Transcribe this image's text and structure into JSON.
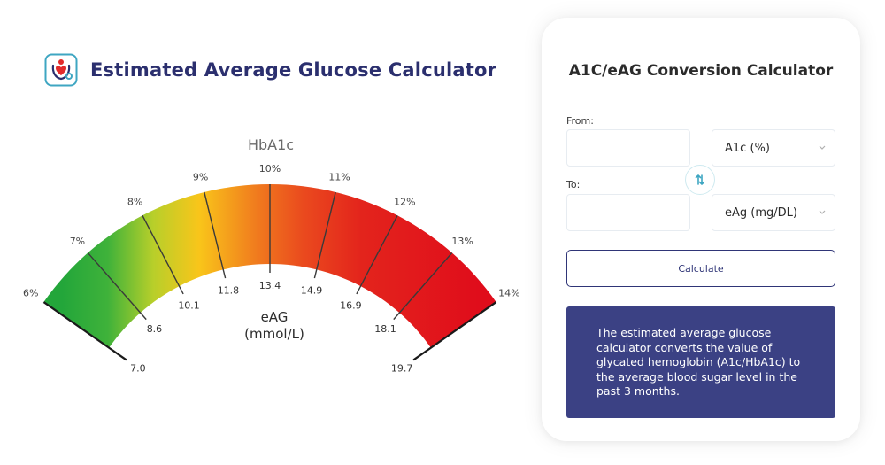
{
  "header": {
    "title": "Estimated Average Glucose Calculator",
    "logo_icon": "heart-stethoscope-logo-icon"
  },
  "gauge": {
    "title": "HbA1c",
    "center_label_line1": "eAG",
    "center_label_line2": "(mmol/L)",
    "outer_ticks": [
      "6%",
      "7%",
      "8%",
      "9%",
      "10%",
      "11%",
      "12%",
      "13%",
      "14%"
    ],
    "inner_ticks": [
      "7.0",
      "8.6",
      "10.1",
      "11.8",
      "13.4",
      "14.9",
      "16.9",
      "18.1",
      "19.7"
    ],
    "colors": {
      "low": "#2eaa3a",
      "mid_low": "#b9cf2a",
      "mid": "#f7c21a",
      "mid_high": "#f06b1e",
      "high": "#e10f1a"
    }
  },
  "calculator": {
    "title": "A1C/eAG Conversion Calculator",
    "from_label": "From:",
    "to_label": "To:",
    "from_value": "",
    "to_value": "",
    "from_unit": "A1c (%)",
    "to_unit": "eAg (mg/DL)",
    "swap_icon": "swap-arrows-icon",
    "button_label": "Calculate",
    "info_text": "The estimated average glucose calculator converts the value of glycated hemoglobin (A1c/HbA1c) to the average blood sugar level in the past 3 months.",
    "accent_color": "#3b4184",
    "swap_color": "#3ea6c2"
  }
}
